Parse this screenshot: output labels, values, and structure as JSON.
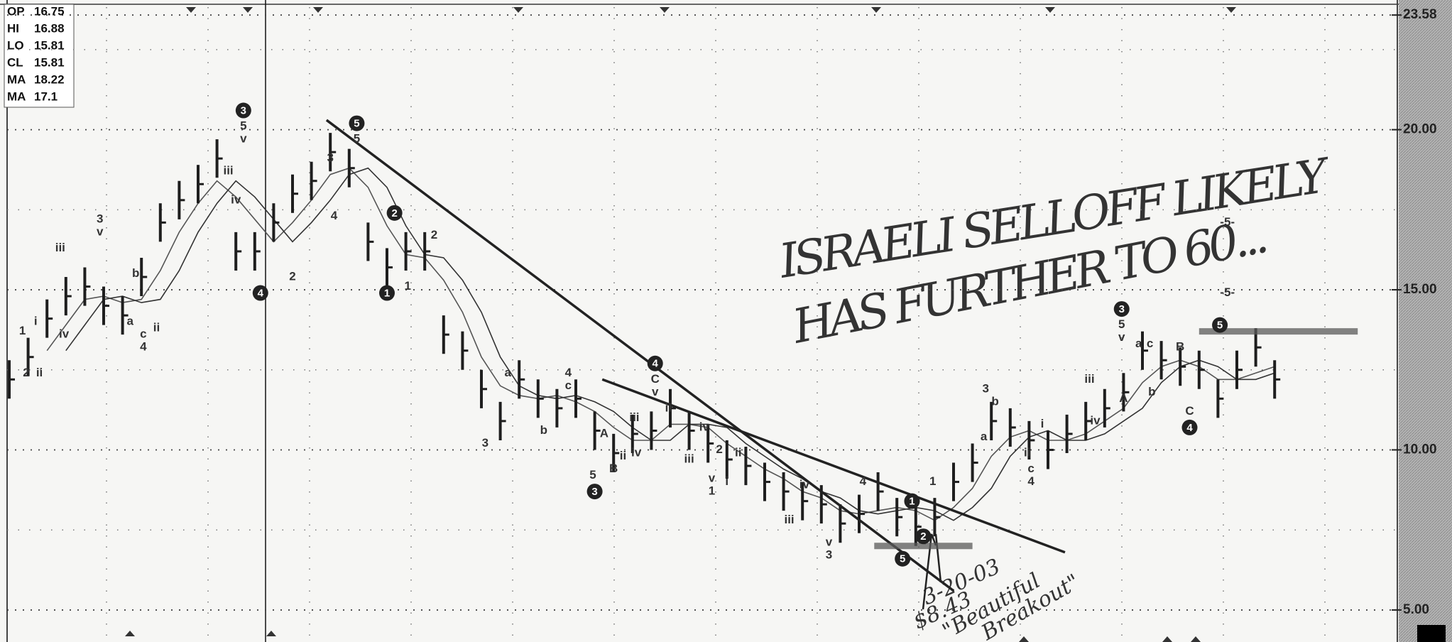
{
  "chart_data": {
    "type": "ohlc",
    "info": [
      {
        "label": "OP",
        "value": 16.75
      },
      {
        "label": "HI",
        "value": 16.88
      },
      {
        "label": "LO",
        "value": 15.81
      },
      {
        "label": "CL",
        "value": 15.81
      },
      {
        "label": "MA",
        "value": 18.22
      },
      {
        "label": "MA",
        "value": 17.1
      }
    ],
    "ylim": [
      4.0,
      24.05
    ],
    "yticks": [
      {
        "value": 5,
        "label": "5.00"
      },
      {
        "value": 10,
        "label": "10.00"
      },
      {
        "value": 15,
        "label": "15.00"
      },
      {
        "value": 20,
        "label": "20.00"
      },
      23.58
    ],
    "minor_yticks": [
      7.5,
      12.5,
      17.5,
      22.5
    ],
    "grid": true,
    "color": "#1e1e1e",
    "close": [
      12.2,
      12.9,
      14.1,
      14.8,
      15.1,
      14.5,
      14.2,
      15.4,
      17.1,
      17.8,
      18.3,
      19.1,
      16.2,
      16.2,
      17.1,
      18.0,
      18.4,
      19.3,
      18.8,
      16.5,
      15.7,
      16.2,
      16.2,
      13.6,
      13.1,
      11.9,
      10.9,
      12.2,
      11.6,
      11.3,
      11.6,
      10.6,
      9.9,
      10.5,
      10.6,
      11.3,
      10.6,
      10.2,
      9.7,
      9.5,
      9.0,
      8.7,
      8.4,
      8.3,
      7.7,
      8.0,
      8.7,
      7.9,
      7.6,
      7.9,
      9.0,
      9.6,
      10.9,
      10.7,
      10.3,
      10.0,
      10.5,
      10.9,
      11.3,
      11.8,
      13.1,
      12.8,
      12.6,
      12.5,
      11.6,
      12.5,
      13.2,
      12.2
    ],
    "high": [
      12.8,
      13.5,
      14.7,
      15.4,
      15.7,
      15.1,
      14.8,
      16.0,
      17.7,
      18.4,
      18.9,
      19.7,
      16.8,
      16.8,
      17.7,
      18.6,
      19.0,
      19.9,
      19.4,
      17.1,
      16.3,
      16.8,
      16.8,
      14.2,
      13.7,
      12.5,
      11.5,
      12.8,
      12.2,
      11.9,
      12.2,
      11.2,
      10.5,
      11.1,
      11.2,
      11.9,
      11.2,
      10.8,
      10.3,
      10.1,
      9.6,
      9.3,
      9.0,
      8.9,
      8.3,
      8.6,
      9.3,
      8.5,
      8.2,
      8.5,
      9.6,
      10.2,
      11.5,
      11.3,
      10.9,
      10.6,
      11.1,
      11.5,
      11.9,
      12.4,
      13.7,
      13.4,
      13.2,
      13.1,
      12.2,
      13.1,
      13.8,
      12.8
    ],
    "low": [
      11.6,
      12.3,
      13.5,
      14.2,
      14.5,
      13.9,
      13.6,
      14.8,
      16.5,
      17.2,
      17.7,
      18.5,
      15.6,
      15.6,
      16.5,
      17.4,
      17.8,
      18.7,
      18.2,
      15.9,
      15.1,
      15.6,
      15.6,
      13.0,
      12.5,
      11.3,
      10.3,
      11.6,
      11.0,
      10.7,
      11.0,
      10.0,
      9.3,
      9.9,
      10.0,
      10.7,
      10.0,
      9.6,
      9.1,
      8.9,
      8.4,
      8.1,
      7.8,
      7.7,
      7.1,
      7.4,
      8.1,
      7.3,
      7.0,
      7.3,
      8.4,
      9.0,
      10.3,
      10.1,
      9.7,
      9.4,
      9.9,
      10.3,
      10.7,
      11.2,
      12.5,
      12.2,
      12.0,
      11.9,
      11.0,
      11.9,
      12.6,
      11.6
    ],
    "moving_averages": [
      {
        "color": "#555555",
        "values": [
          null,
          null,
          13.1,
          13.9,
          14.7,
          14.8,
          14.6,
          14.7,
          15.6,
          16.8,
          17.7,
          18.4,
          17.9,
          17.2,
          16.5,
          17.1,
          17.8,
          18.6,
          18.8,
          18.2,
          17.0,
          16.1,
          16.0,
          15.3,
          14.3,
          12.9,
          12.0,
          11.7,
          11.6,
          11.7,
          11.5,
          11.2,
          10.7,
          10.3,
          10.3,
          10.8,
          10.8,
          10.7,
          10.2,
          9.8,
          9.4,
          9.1,
          8.7,
          8.5,
          8.1,
          8.0,
          8.1,
          8.2,
          8.1,
          7.8,
          8.2,
          8.8,
          9.8,
          10.4,
          10.6,
          10.3,
          10.3,
          10.5,
          10.9,
          11.3,
          12.1,
          12.6,
          12.8,
          12.6,
          12.2,
          12.2,
          12.4,
          12.6
        ]
      },
      {
        "color": "#333333",
        "values": [
          null,
          null,
          null,
          13.1,
          13.9,
          14.7,
          14.8,
          14.6,
          14.7,
          15.6,
          16.8,
          17.7,
          18.4,
          17.9,
          17.2,
          16.5,
          17.1,
          17.8,
          18.6,
          18.8,
          18.2,
          17.0,
          16.1,
          16.0,
          15.3,
          14.3,
          12.9,
          12.0,
          11.7,
          11.6,
          11.7,
          11.5,
          11.2,
          10.7,
          10.3,
          10.3,
          10.8,
          10.8,
          10.7,
          10.2,
          9.8,
          9.4,
          9.1,
          8.7,
          8.5,
          8.1,
          8.0,
          8.1,
          8.2,
          8.1,
          7.8,
          8.2,
          8.8,
          9.8,
          10.4,
          10.6,
          10.3,
          10.3,
          10.5,
          10.9,
          11.3,
          12.1,
          12.6,
          12.8,
          12.6,
          12.2,
          12.2,
          12.4
        ]
      }
    ],
    "trendlines": [
      {
        "x1": 16.8,
        "y1": 20.3,
        "x2": 50.0,
        "y2": 5.6
      },
      {
        "x1": 31.4,
        "y1": 12.2,
        "x2": 55.9,
        "y2": 6.8
      },
      {
        "x1": 63.0,
        "y1": 13.7,
        "x2": 71.4,
        "y2": 13.7
      },
      {
        "x1": 45.8,
        "y1": 7.0,
        "x2": 51.0,
        "y2": 7.0
      }
    ],
    "wave_labels": [
      {
        "text": "1",
        "x": 0.7,
        "y": 13.7
      },
      {
        "text": "2",
        "x": 0.9,
        "y": 12.4
      },
      {
        "text": "i",
        "x": 1.4,
        "y": 14.0
      },
      {
        "text": "ii",
        "x": 1.6,
        "y": 12.4
      },
      {
        "text": "iii",
        "x": 2.7,
        "y": 16.3
      },
      {
        "text": "iv",
        "x": 2.9,
        "y": 13.6
      },
      {
        "text": "3",
        "x": 4.8,
        "y": 17.2
      },
      {
        "text": "v",
        "x": 4.8,
        "y": 16.8
      },
      {
        "text": "b",
        "x": 6.7,
        "y": 15.5
      },
      {
        "text": "a",
        "x": 6.4,
        "y": 14.0
      },
      {
        "text": "c",
        "x": 7.1,
        "y": 13.6
      },
      {
        "text": "4",
        "x": 7.1,
        "y": 13.2
      },
      {
        "text": "ii",
        "x": 7.8,
        "y": 13.8
      },
      {
        "text": "iii",
        "x": 11.6,
        "y": 18.7
      },
      {
        "text": "iv",
        "x": 12.0,
        "y": 17.8
      },
      {
        "text": "5",
        "x": 12.4,
        "y": 20.1
      },
      {
        "text": "v",
        "x": 12.4,
        "y": 19.7
      },
      {
        "text": "2",
        "x": 15.0,
        "y": 15.4
      },
      {
        "text": "3",
        "x": 17.0,
        "y": 19.1
      },
      {
        "text": "4",
        "x": 17.2,
        "y": 17.3
      },
      {
        "text": "5",
        "x": 18.4,
        "y": 19.7
      },
      {
        "text": "1",
        "x": 21.1,
        "y": 15.1
      },
      {
        "text": "2",
        "x": 22.5,
        "y": 16.7
      },
      {
        "text": "3",
        "x": 25.2,
        "y": 10.2
      },
      {
        "text": "a",
        "x": 26.4,
        "y": 12.4
      },
      {
        "text": "b",
        "x": 28.3,
        "y": 10.6
      },
      {
        "text": "4",
        "x": 29.6,
        "y": 12.4
      },
      {
        "text": "c",
        "x": 29.6,
        "y": 12.0
      },
      {
        "text": "5",
        "x": 30.9,
        "y": 9.2
      },
      {
        "text": "A",
        "x": 31.5,
        "y": 10.5
      },
      {
        "text": "B",
        "x": 32.0,
        "y": 9.4
      },
      {
        "text": "ii",
        "x": 32.5,
        "y": 9.8
      },
      {
        "text": "iii",
        "x": 33.1,
        "y": 11.0
      },
      {
        "text": "iv",
        "x": 33.2,
        "y": 9.9
      },
      {
        "text": "C",
        "x": 34.2,
        "y": 12.2
      },
      {
        "text": "v",
        "x": 34.2,
        "y": 11.8
      },
      {
        "text": "ii",
        "x": 34.9,
        "y": 11.3
      },
      {
        "text": "iii",
        "x": 36.0,
        "y": 9.7
      },
      {
        "text": "iv",
        "x": 36.8,
        "y": 10.7
      },
      {
        "text": "v",
        "x": 37.2,
        "y": 9.1
      },
      {
        "text": "1",
        "x": 37.2,
        "y": 8.7
      },
      {
        "text": "2",
        "x": 37.6,
        "y": 10.0
      },
      {
        "text": "i",
        "x": 38.0,
        "y": 9.0
      },
      {
        "text": "ii",
        "x": 38.6,
        "y": 9.9
      },
      {
        "text": "iii",
        "x": 41.3,
        "y": 7.8
      },
      {
        "text": "iv",
        "x": 42.1,
        "y": 8.9
      },
      {
        "text": "v",
        "x": 43.4,
        "y": 7.1
      },
      {
        "text": "3",
        "x": 43.4,
        "y": 6.7
      },
      {
        "text": "4",
        "x": 45.2,
        "y": 9.0
      },
      {
        "text": "1",
        "x": 48.9,
        "y": 9.0
      },
      {
        "text": "a",
        "x": 51.6,
        "y": 10.4
      },
      {
        "text": "3",
        "x": 51.7,
        "y": 11.9
      },
      {
        "text": "b",
        "x": 52.2,
        "y": 11.5
      },
      {
        "text": "ii",
        "x": 53.9,
        "y": 9.9
      },
      {
        "text": "c",
        "x": 54.1,
        "y": 9.4
      },
      {
        "text": "4",
        "x": 54.1,
        "y": 9.0
      },
      {
        "text": "i",
        "x": 54.7,
        "y": 10.8
      },
      {
        "text": "iii",
        "x": 57.2,
        "y": 12.2
      },
      {
        "text": "iv",
        "x": 57.5,
        "y": 10.9
      },
      {
        "text": "5",
        "x": 58.9,
        "y": 13.9
      },
      {
        "text": "v",
        "x": 58.9,
        "y": 13.5
      },
      {
        "text": "A",
        "x": 59.0,
        "y": 11.6
      },
      {
        "text": "a",
        "x": 59.8,
        "y": 13.3
      },
      {
        "text": "c",
        "x": 60.4,
        "y": 13.3
      },
      {
        "text": "b",
        "x": 60.5,
        "y": 11.8
      },
      {
        "text": "B",
        "x": 62.0,
        "y": 13.2
      },
      {
        "text": "C",
        "x": 62.5,
        "y": 11.2
      },
      {
        "text": "-5-",
        "x": 64.5,
        "y": 17.1
      },
      {
        "text": "-5-",
        "x": 64.5,
        "y": 14.9
      }
    ],
    "circled_wave_labels": [
      {
        "text": "3",
        "x": 12.4,
        "y": 20.6
      },
      {
        "text": "5",
        "x": 18.4,
        "y": 20.2
      },
      {
        "text": "4",
        "x": 13.3,
        "y": 14.9
      },
      {
        "text": "1",
        "x": 20.0,
        "y": 14.9
      },
      {
        "text": "2",
        "x": 20.4,
        "y": 17.4
      },
      {
        "text": "4",
        "x": 34.2,
        "y": 12.7
      },
      {
        "text": "3",
        "x": 31.0,
        "y": 8.7
      },
      {
        "text": "5",
        "x": 47.3,
        "y": 6.6
      },
      {
        "text": "1",
        "x": 47.8,
        "y": 8.4
      },
      {
        "text": "2",
        "x": 48.4,
        "y": 7.3
      },
      {
        "text": "3",
        "x": 58.9,
        "y": 14.4
      },
      {
        "text": "5",
        "x": 64.1,
        "y": 13.9
      },
      {
        "text": "4",
        "x": 62.5,
        "y": 10.7
      }
    ],
    "annotations": [
      "ISRAELI SELLOFF LIKELY",
      "HAS FURTHER TO 60...",
      "3-20-03",
      "$8.43",
      "\"Beautiful",
      "Breakout\""
    ]
  }
}
